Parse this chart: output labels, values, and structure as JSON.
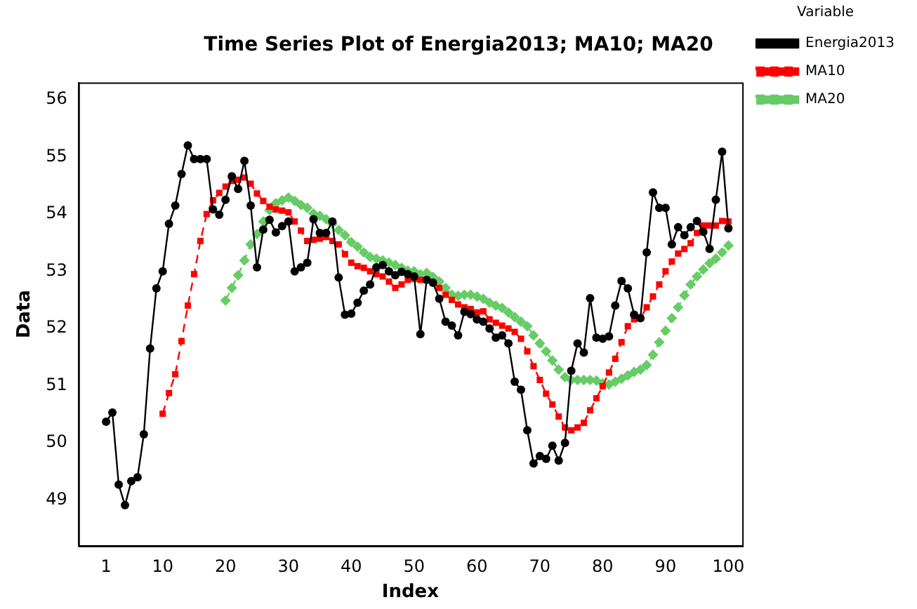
{
  "chart_data": {
    "type": "line",
    "title": "Time Series Plot of Energia2013; MA10; MA20",
    "xlabel": "Index",
    "ylabel": "Data",
    "legend_title": "Variable",
    "legend": "right",
    "grid": false,
    "x": [
      1,
      2,
      3,
      4,
      5,
      6,
      7,
      8,
      9,
      10,
      11,
      12,
      13,
      14,
      15,
      16,
      17,
      18,
      19,
      20,
      21,
      22,
      23,
      24,
      25,
      26,
      27,
      28,
      29,
      30,
      31,
      32,
      33,
      34,
      35,
      36,
      37,
      38,
      39,
      40,
      41,
      42,
      43,
      44,
      45,
      46,
      47,
      48,
      49,
      50,
      51,
      52,
      53,
      54,
      55,
      56,
      57,
      58,
      59,
      60,
      61,
      62,
      63,
      64,
      65,
      66,
      67,
      68,
      69,
      70,
      71,
      72,
      73,
      74,
      75,
      76,
      77,
      78,
      79,
      80,
      81,
      82,
      83,
      84,
      85,
      86,
      87,
      88,
      89,
      90,
      91,
      92,
      93,
      94,
      95,
      96,
      97,
      98,
      99,
      100
    ],
    "xlim": [
      -3.4,
      102.2
    ],
    "xticks": [
      1,
      10,
      20,
      30,
      40,
      50,
      60,
      70,
      80,
      90,
      100
    ],
    "ylim": [
      48.2,
      56.3
    ],
    "yticks": [
      49,
      50,
      51,
      52,
      53,
      54,
      55,
      56
    ],
    "series": [
      {
        "name": "Energia2013",
        "color": "#000000",
        "marker": "circle",
        "line_style": "solid",
        "values": [
          50.37,
          50.53,
          49.27,
          48.91,
          49.33,
          49.4,
          50.15,
          51.65,
          52.7,
          53.0,
          53.83,
          54.15,
          54.7,
          55.2,
          54.96,
          54.96,
          54.96,
          54.08,
          53.99,
          54.25,
          54.66,
          54.44,
          54.93,
          54.15,
          53.07,
          53.73,
          53.9,
          53.68,
          53.79,
          53.87,
          53.0,
          53.07,
          53.15,
          53.91,
          53.67,
          53.67,
          53.87,
          52.89,
          52.24,
          52.26,
          52.45,
          52.66,
          52.77,
          53.07,
          53.11,
          53.0,
          52.93,
          52.99,
          52.95,
          52.91,
          51.9,
          52.85,
          52.8,
          52.52,
          52.12,
          52.05,
          51.88,
          52.29,
          52.25,
          52.16,
          52.12,
          52.0,
          51.84,
          51.88,
          51.74,
          51.07,
          50.93,
          50.22,
          49.64,
          49.77,
          49.72,
          49.95,
          49.69,
          50.0,
          51.26,
          51.74,
          51.58,
          52.53,
          51.84,
          51.82,
          51.86,
          52.4,
          52.83,
          52.7,
          52.24,
          52.18,
          53.33,
          54.38,
          54.11,
          54.11,
          53.47,
          53.77,
          53.63,
          53.77,
          53.88,
          53.69,
          53.39,
          54.25,
          55.09,
          53.75
        ]
      },
      {
        "name": "MA10",
        "color": "#ff0000",
        "marker": "square",
        "line_style": "dashed",
        "values": [
          null,
          null,
          null,
          null,
          null,
          null,
          null,
          null,
          null,
          50.51,
          50.87,
          51.2,
          51.78,
          52.4,
          52.95,
          53.53,
          54.0,
          54.24,
          54.37,
          54.48,
          54.58,
          54.6,
          54.64,
          54.53,
          54.36,
          54.23,
          54.13,
          54.08,
          54.06,
          54.03,
          53.87,
          53.71,
          53.53,
          53.55,
          53.57,
          53.6,
          53.53,
          53.47,
          53.3,
          53.15,
          53.09,
          53.06,
          53.0,
          52.95,
          52.91,
          52.82,
          52.71,
          52.77,
          52.85,
          52.87,
          52.85,
          52.85,
          52.8,
          52.71,
          52.59,
          52.5,
          52.42,
          52.37,
          52.34,
          52.28,
          52.3,
          52.16,
          52.1,
          52.05,
          52.0,
          51.94,
          51.82,
          51.6,
          51.34,
          51.1,
          50.86,
          50.67,
          50.46,
          50.27,
          50.22,
          50.27,
          50.35,
          50.57,
          50.78,
          50.99,
          51.23,
          51.47,
          51.76,
          52.04,
          52.16,
          52.18,
          52.37,
          52.56,
          52.77,
          53.0,
          53.17,
          53.31,
          53.39,
          53.49,
          53.67,
          53.8,
          53.8,
          53.8,
          53.88,
          53.87
        ]
      },
      {
        "name": "MA20",
        "color": "#66cc66",
        "marker": "diamond",
        "line_style": "dashed",
        "values": [
          null,
          null,
          null,
          null,
          null,
          null,
          null,
          null,
          null,
          null,
          null,
          null,
          null,
          null,
          null,
          null,
          null,
          null,
          null,
          52.49,
          52.71,
          52.93,
          53.19,
          53.47,
          53.65,
          53.87,
          54.07,
          54.19,
          54.24,
          54.29,
          54.23,
          54.16,
          54.11,
          54.01,
          53.97,
          53.91,
          53.83,
          53.72,
          53.63,
          53.51,
          53.43,
          53.33,
          53.25,
          53.22,
          53.19,
          53.15,
          53.11,
          53.06,
          53.01,
          53.0,
          52.95,
          52.97,
          52.9,
          52.82,
          52.71,
          52.59,
          52.57,
          52.59,
          52.59,
          52.56,
          52.52,
          52.45,
          52.4,
          52.36,
          52.28,
          52.2,
          52.12,
          52.04,
          51.88,
          51.74,
          51.6,
          51.44,
          51.28,
          51.15,
          51.1,
          51.1,
          51.1,
          51.1,
          51.09,
          51.04,
          51.02,
          51.07,
          51.12,
          51.18,
          51.24,
          51.28,
          51.36,
          51.54,
          51.76,
          51.96,
          52.18,
          52.37,
          52.58,
          52.77,
          52.91,
          53.03,
          53.14,
          53.22,
          53.33,
          53.45
        ]
      }
    ]
  }
}
